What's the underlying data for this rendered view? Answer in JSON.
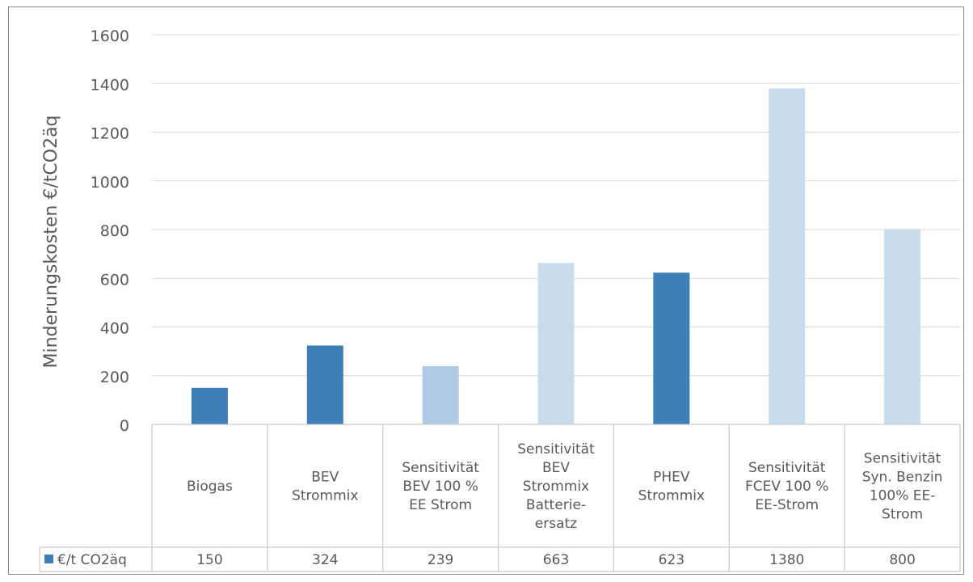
{
  "chart_data": {
    "type": "bar",
    "title": "",
    "xlabel": "",
    "ylabel": "Minderungskosten €/tCO2äq",
    "ylim": [
      0,
      1600
    ],
    "yticks": [
      0,
      200,
      400,
      600,
      800,
      1000,
      1200,
      1400,
      1600
    ],
    "grid": true,
    "categories": [
      [
        "Biogas"
      ],
      [
        "BEV",
        "Strommix"
      ],
      [
        "Sensitivität",
        "BEV 100 %",
        "EE Strom"
      ],
      [
        "Sensitivität",
        "BEV",
        "Strommix",
        "Batterie-",
        "ersatz"
      ],
      [
        "PHEV",
        "Strommix"
      ],
      [
        "Sensitivität",
        "FCEV 100 %",
        "EE-Strom"
      ],
      [
        "Sensitivität",
        "Syn. Benzin",
        "100% EE-",
        "Strom"
      ]
    ],
    "series": [
      {
        "name": "€/t CO2äq",
        "values": [
          150,
          324,
          239,
          663,
          623,
          1380,
          800
        ]
      }
    ],
    "bar_colors": [
      "#3f7fb8",
      "#3f7fb8",
      "#b0cbe4",
      "#c8dcec",
      "#3f7fb8",
      "#c8dcec",
      "#c8dcec"
    ],
    "legend_color": "#3f7fb8",
    "data_table": true
  }
}
